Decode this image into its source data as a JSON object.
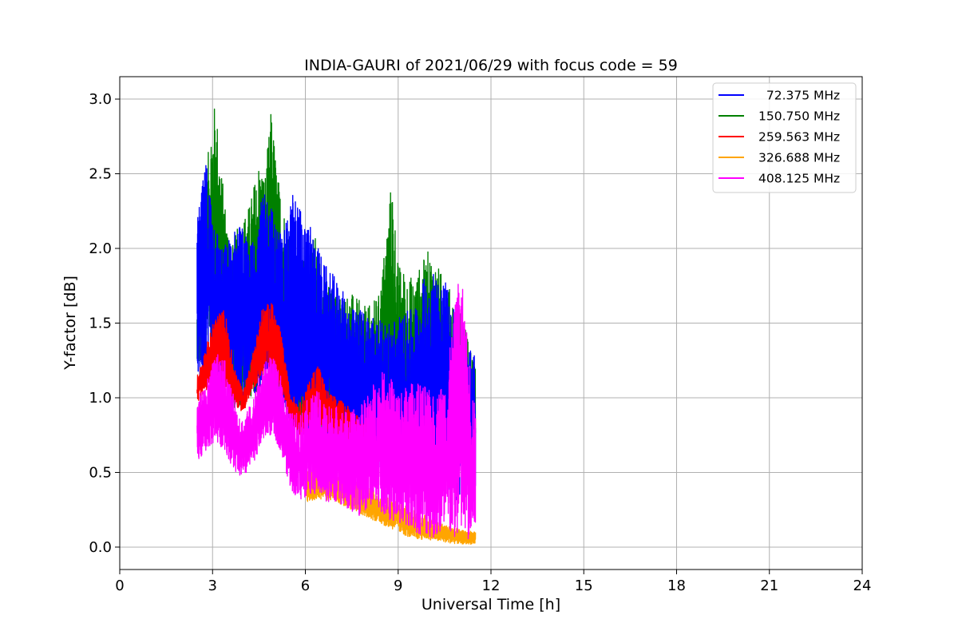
{
  "chart_data": {
    "type": "line",
    "title": "INDIA-GAURI of 2021/06/29 with focus code = 59",
    "xlabel": "Universal Time [h]",
    "ylabel": "Y-factor [dB]",
    "xlim": [
      0,
      24
    ],
    "ylim": [
      -0.15,
      3.15
    ],
    "xticks": [
      0,
      3,
      6,
      9,
      12,
      15,
      18,
      21,
      24
    ],
    "xtick_labels": [
      "0",
      "3",
      "6",
      "9",
      "12",
      "15",
      "18",
      "21",
      "24"
    ],
    "yticks": [
      0.0,
      0.5,
      1.0,
      1.5,
      2.0,
      2.5,
      3.0
    ],
    "ytick_labels": [
      "0.0",
      "0.5",
      "1.0",
      "1.5",
      "2.0",
      "2.5",
      "3.0"
    ],
    "grid": true,
    "legend_position": "top-right",
    "series": [
      {
        "name": "  72.375 MHz",
        "color": "#0000ff",
        "x": [
          2.5,
          2.8,
          3.0,
          3.3,
          3.6,
          3.9,
          4.2,
          4.5,
          4.8,
          5.0,
          5.3,
          5.6,
          6.0,
          6.3,
          6.6,
          7.0,
          7.5,
          8.0,
          8.5,
          9.0,
          9.5,
          10.0,
          10.5,
          11.0,
          11.5
        ],
        "low": [
          1.1,
          1.1,
          1.2,
          1.1,
          0.9,
          0.95,
          1.0,
          1.05,
          1.1,
          1.05,
          0.85,
          0.75,
          0.7,
          0.7,
          0.65,
          0.6,
          0.55,
          0.5,
          0.5,
          0.45,
          0.4,
          0.4,
          0.35,
          0.3,
          0.3
        ],
        "high": [
          2.2,
          2.6,
          2.3,
          2.0,
          2.1,
          2.2,
          2.0,
          2.3,
          2.4,
          2.2,
          2.1,
          2.4,
          2.2,
          2.1,
          1.9,
          1.8,
          1.6,
          1.6,
          1.5,
          1.55,
          1.6,
          1.9,
          1.8,
          1.5,
          1.3
        ]
      },
      {
        "name": "150.750 MHz",
        "color": "#008000",
        "x": [
          2.5,
          2.7,
          2.9,
          3.1,
          3.3,
          3.6,
          3.9,
          4.2,
          4.5,
          4.7,
          4.9,
          5.1,
          5.4,
          5.7,
          6.0,
          6.3,
          6.6,
          7.0,
          7.5,
          8.0,
          8.4,
          8.8,
          9.0,
          9.5,
          10.0,
          10.5,
          11.0,
          11.5
        ],
        "low": [
          1.2,
          1.2,
          1.3,
          1.25,
          1.1,
          0.95,
          0.9,
          1.0,
          1.05,
          1.1,
          1.05,
          1.0,
          0.9,
          0.8,
          0.75,
          0.75,
          0.7,
          0.65,
          0.6,
          0.55,
          0.55,
          0.5,
          0.5,
          0.5,
          0.45,
          0.45,
          0.4,
          0.4
        ],
        "high": [
          1.6,
          2.0,
          2.8,
          3.0,
          2.5,
          2.0,
          2.2,
          2.3,
          2.6,
          2.5,
          2.95,
          2.5,
          2.2,
          2.0,
          1.9,
          2.15,
          1.8,
          1.7,
          1.7,
          1.6,
          1.7,
          2.5,
          1.9,
          1.8,
          2.0,
          1.8,
          1.6,
          1.2
        ]
      },
      {
        "name": "259.563 MHz",
        "color": "#ff0000",
        "x": [
          2.5,
          2.8,
          3.1,
          3.4,
          3.7,
          4.0,
          4.3,
          4.6,
          4.9,
          5.2,
          5.5,
          5.8,
          6.1,
          6.4,
          6.7,
          7.0,
          7.4,
          7.8,
          8.2
        ],
        "low": [
          0.95,
          1.05,
          1.15,
          1.05,
          0.95,
          0.9,
          1.05,
          1.15,
          1.2,
          1.05,
          0.85,
          0.75,
          0.75,
          0.8,
          0.7,
          0.72,
          0.65,
          0.6,
          0.7
        ],
        "high": [
          1.15,
          1.35,
          1.55,
          1.6,
          1.2,
          1.05,
          1.3,
          1.6,
          1.65,
          1.45,
          1.05,
          0.95,
          1.1,
          1.25,
          1.05,
          1.0,
          0.95,
          0.85,
          0.9
        ]
      },
      {
        "name": "326.688 MHz",
        "color": "#ffa500",
        "x": [
          6.0,
          6.5,
          7.0,
          7.5,
          8.0,
          8.5,
          9.0,
          9.5,
          10.0,
          10.5,
          11.0,
          11.5
        ],
        "low": [
          0.3,
          0.32,
          0.3,
          0.25,
          0.2,
          0.15,
          0.1,
          0.05,
          0.05,
          0.03,
          0.02,
          0.02
        ],
        "high": [
          0.5,
          0.55,
          0.5,
          0.45,
          0.4,
          0.35,
          0.3,
          0.25,
          0.2,
          0.15,
          0.12,
          0.1
        ]
      },
      {
        "name": "408.125 MHz",
        "color": "#ff00ff",
        "x": [
          2.5,
          2.8,
          3.1,
          3.4,
          3.7,
          4.0,
          4.3,
          4.6,
          4.9,
          5.2,
          5.5,
          5.8,
          6.1,
          6.4,
          6.7,
          7.0,
          7.4,
          7.8,
          8.2,
          8.6,
          9.0,
          9.4,
          9.8,
          10.2,
          10.6,
          11.0,
          11.5
        ],
        "low": [
          0.55,
          0.65,
          0.7,
          0.65,
          0.5,
          0.45,
          0.55,
          0.7,
          0.75,
          0.65,
          0.4,
          0.3,
          0.35,
          0.35,
          0.3,
          0.3,
          0.25,
          0.2,
          0.3,
          0.2,
          0.15,
          0.1,
          0.08,
          0.05,
          0.05,
          0.03,
          0.03
        ],
        "high": [
          1.0,
          1.1,
          1.3,
          1.25,
          1.0,
          0.85,
          1.0,
          1.2,
          1.3,
          1.15,
          0.9,
          0.9,
          1.0,
          1.05,
          0.95,
          0.95,
          0.9,
          0.95,
          1.1,
          1.2,
          1.05,
          1.1,
          1.1,
          1.0,
          1.2,
          1.9,
          0.9
        ]
      }
    ]
  }
}
